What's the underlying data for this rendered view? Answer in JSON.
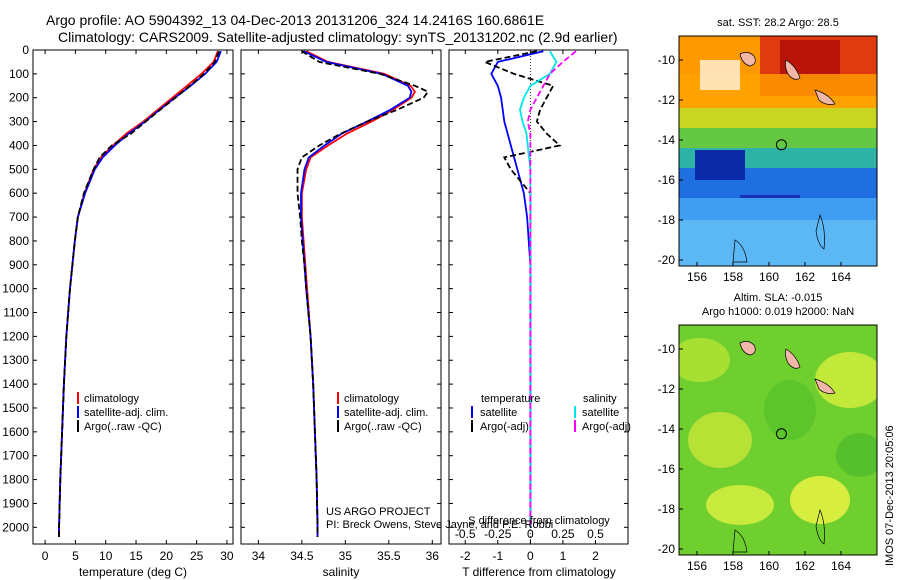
{
  "header": {
    "title1": "Argo profile: AO 5904392_13 04-Dec-2013 20131206_324 14.2416S 160.6861E",
    "title2": "Climatology: CARS2009. Satellite-adjusted climatology: synTS_20131202.nc (2.9d earlier)"
  },
  "footer": {
    "project": "US ARGO PROJECT",
    "pi": "PI: Breck Owens, Steve Jayne, and P.E. Robbi",
    "imos": "IMOS 07-Dec-2013 20:05:06"
  },
  "colors": {
    "climatology": "#ff0000",
    "satellite": "#0000ff",
    "argo": "#000000",
    "sal_satellite": "#00e5e5",
    "sal_argo": "#ff00ff"
  },
  "chart_data": [
    {
      "type": "line",
      "name": "temperature",
      "xlabel": "temperature (deg C)",
      "xlim": [
        -2,
        31
      ],
      "ylim": [
        2070,
        0
      ],
      "xticks": [
        "0",
        "5",
        "10",
        "15",
        "20",
        "25",
        "30"
      ],
      "yticks": [
        "0",
        "100",
        "200",
        "300",
        "400",
        "500",
        "600",
        "700",
        "800",
        "900",
        "1000",
        "1100",
        "1200",
        "1300",
        "1400",
        "1500",
        "1600",
        "1700",
        "1800",
        "1900",
        "2000"
      ],
      "depth": [
        5,
        50,
        100,
        150,
        200,
        250,
        300,
        350,
        400,
        450,
        500,
        600,
        700,
        800,
        900,
        1000,
        1200,
        1400,
        1600,
        1800,
        2000,
        2040
      ],
      "series": [
        {
          "name": "climatology",
          "legend": "climatology",
          "values": [
            28.5,
            27.8,
            25.8,
            23.4,
            21.0,
            18.6,
            16.2,
            13.4,
            11.2,
            9.2,
            8.0,
            6.5,
            5.4,
            4.9,
            4.5,
            4.1,
            3.5,
            3.1,
            2.8,
            2.5,
            2.3,
            2.3
          ]
        },
        {
          "name": "satellite",
          "legend": "satellite-adj. clim.",
          "values": [
            29.0,
            28.3,
            26.4,
            24.0,
            21.4,
            18.9,
            16.5,
            13.8,
            11.5,
            9.5,
            8.2,
            6.6,
            5.4,
            4.9,
            4.5,
            4.1,
            3.5,
            3.1,
            2.8,
            2.5,
            2.3,
            2.3
          ]
        },
        {
          "name": "argo",
          "legend": "Argo(..raw -QC)",
          "values": [
            28.7,
            28.0,
            26.2,
            23.9,
            21.5,
            19.0,
            16.6,
            14.2,
            11.0,
            9.0,
            8.0,
            6.4,
            5.4,
            4.9,
            4.5,
            4.1,
            3.5,
            3.1,
            2.8,
            2.5,
            2.3,
            2.3
          ]
        }
      ]
    },
    {
      "type": "line",
      "name": "salinity",
      "xlabel": "salinity",
      "xlim": [
        33.8,
        36.1
      ],
      "ylim": [
        2070,
        0
      ],
      "xticks": [
        "34",
        "34.5",
        "35",
        "35.5",
        "36"
      ],
      "depth": [
        5,
        50,
        100,
        150,
        175,
        200,
        250,
        300,
        350,
        400,
        450,
        500,
        600,
        700,
        800,
        900,
        1000,
        1200,
        1400,
        1600,
        1800,
        2000,
        2040
      ],
      "series": [
        {
          "name": "climatology",
          "legend": "climatology",
          "values": [
            34.55,
            34.8,
            35.45,
            35.75,
            35.8,
            35.76,
            35.55,
            35.3,
            35.02,
            34.8,
            34.6,
            34.55,
            34.5,
            34.5,
            34.52,
            34.54,
            34.56,
            34.6,
            34.63,
            34.65,
            34.67,
            34.68,
            34.68
          ]
        },
        {
          "name": "satellite",
          "legend": "satellite-adj. clim.",
          "values": [
            34.52,
            34.78,
            35.42,
            35.72,
            35.76,
            35.74,
            35.52,
            35.25,
            34.96,
            34.76,
            34.58,
            34.53,
            34.49,
            34.49,
            34.51,
            34.53,
            34.55,
            34.6,
            34.63,
            34.65,
            34.67,
            34.68,
            34.68
          ]
        },
        {
          "name": "argo",
          "legend": "Argo(..raw -QC)",
          "values": [
            34.5,
            34.7,
            35.4,
            35.8,
            35.95,
            35.9,
            35.6,
            35.25,
            34.95,
            34.7,
            34.5,
            34.45,
            34.45,
            34.48,
            34.5,
            34.53,
            34.55,
            34.6,
            34.63,
            34.65,
            34.67,
            34.68,
            34.68
          ]
        }
      ]
    },
    {
      "type": "line",
      "name": "differences",
      "xlabel": "T difference from climatology",
      "xlabel_top": "S difference from climatology",
      "xlim": [
        -2.5,
        3.0
      ],
      "ylim": [
        2070,
        0
      ],
      "xticks": [
        "-2",
        "-1",
        "0",
        "1",
        "2"
      ],
      "xticks_top": [
        "-0.5",
        "-0.25",
        "0",
        "0.25",
        "0.5"
      ],
      "depth": [
        5,
        50,
        100,
        150,
        200,
        250,
        300,
        350,
        400,
        450,
        500,
        600,
        700,
        800,
        900,
        1000,
        1200,
        1600,
        2000
      ],
      "series": [
        {
          "name": "T satellite",
          "legend": "satellite",
          "values": [
            0.4,
            -1.0,
            -1.2,
            -1.0,
            -0.9,
            -0.85,
            -0.8,
            -0.7,
            -0.6,
            -0.5,
            -0.4,
            -0.2,
            -0.1,
            -0.05,
            0,
            0,
            0,
            0,
            0
          ]
        },
        {
          "name": "T Argo(-adj)",
          "legend": "Argo(-adj)",
          "values": [
            0.2,
            -1.4,
            -0.5,
            0.7,
            0.5,
            0.3,
            0.2,
            0.5,
            0.9,
            -0.8,
            -0.6,
            0,
            0,
            0,
            0,
            0,
            0,
            0,
            0
          ]
        },
        {
          "name": "S satellite",
          "legend": "satellite",
          "values": [
            0.15,
            0.2,
            0.15,
            0.0,
            -0.05,
            -0.08,
            -0.06,
            -0.03,
            -0.02,
            -0.01,
            0,
            0,
            0,
            0,
            0,
            0,
            0,
            0,
            0
          ]
        },
        {
          "name": "S Argo(-adj)",
          "legend": "Argo(-adj)",
          "values": [
            0.35,
            0.25,
            0.15,
            0.1,
            0.05,
            0.0,
            -0.02,
            0.0,
            0.0,
            0.0,
            0.0,
            0,
            0,
            0,
            0,
            0,
            0,
            0,
            0
          ]
        }
      ],
      "legend_headers": [
        "temperature",
        "salinity"
      ]
    },
    {
      "type": "heatmap",
      "name": "sst_map",
      "title": "sat. SST: 28.2 Argo: 28.5",
      "xticks": [
        "156",
        "158",
        "160",
        "162",
        "164"
      ],
      "yticks": [
        "-10",
        "-12",
        "-14",
        "-16",
        "-18",
        "-20"
      ],
      "lon": [
        155,
        166
      ],
      "lat": [
        -20.3,
        -8.8
      ],
      "profile_marker": {
        "lon": 160.69,
        "lat": -14.24
      }
    },
    {
      "type": "heatmap",
      "name": "sla_map",
      "title1": "Altim. SLA: -0.015",
      "title2": "Argo h1000: 0.019 h2000: NaN",
      "xticks": [
        "156",
        "158",
        "160",
        "162",
        "164"
      ],
      "yticks": [
        "-10",
        "-12",
        "-14",
        "-16",
        "-18",
        "-20"
      ],
      "lon": [
        155,
        166
      ],
      "lat": [
        -20.3,
        -8.8
      ],
      "profile_marker": {
        "lon": 160.69,
        "lat": -14.24
      }
    }
  ]
}
